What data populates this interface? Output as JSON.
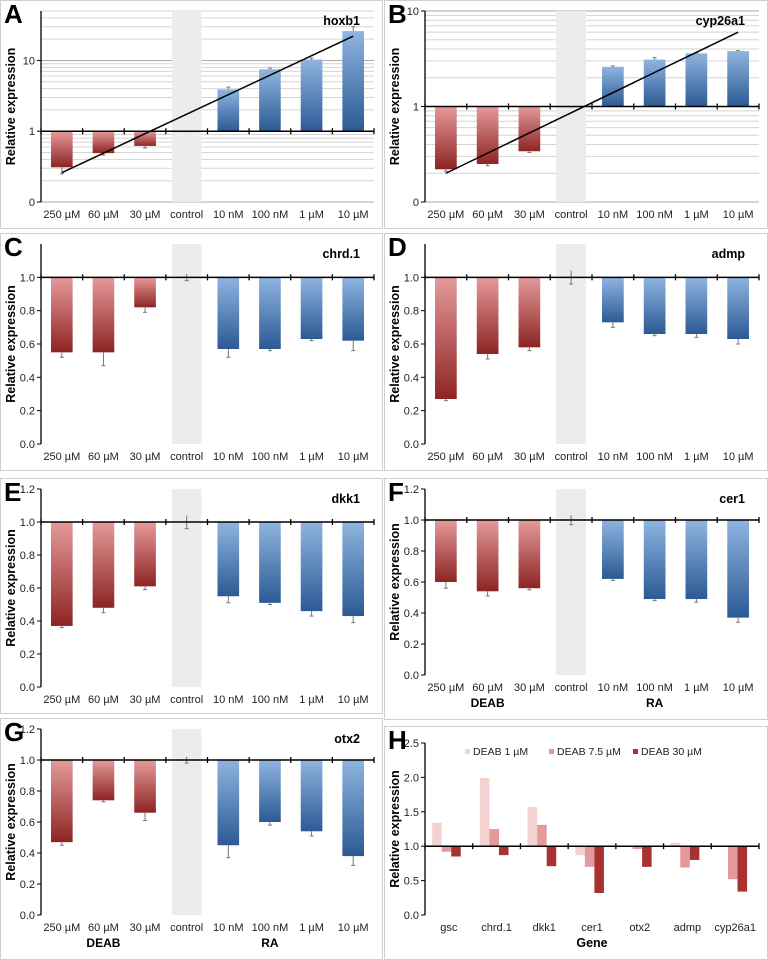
{
  "colors": {
    "deab_light": "#e59a9a",
    "deab_dark": "#8e2424",
    "ra_light": "#8fb4e0",
    "ra_dark": "#2c5a94",
    "control_band": "#ececec",
    "h_series": [
      "#f4d2d2",
      "#e49a9a",
      "#a83232"
    ]
  },
  "categories": [
    "250 µM",
    "60 µM",
    "30 µM",
    "control",
    "10 nM",
    "100 nM",
    "1 µM",
    "10 µM"
  ],
  "chart_data": [
    {
      "panel": "A",
      "type": "bar",
      "title": "hoxb1",
      "ylabel": "Relative expression",
      "yscale": "log",
      "ylim": [
        0.1,
        50
      ],
      "yticks": [
        0.1,
        1,
        10
      ],
      "ytick_labels": [
        "0",
        "1",
        "10"
      ],
      "baseline": 1,
      "values": [
        0.31,
        0.49,
        0.62,
        1.0,
        3.9,
        7.5,
        10.3,
        26
      ],
      "errors": [
        0.06,
        0.03,
        0.04,
        0.01,
        0.3,
        0.3,
        0.5,
        4
      ],
      "trendline": [
        0.26,
        22
      ],
      "grid": true
    },
    {
      "panel": "B",
      "type": "bar",
      "title": "cyp26a1",
      "ylabel": "Relative expression",
      "yscale": "log",
      "ylim": [
        0.1,
        10
      ],
      "yticks": [
        0.1,
        1,
        10
      ],
      "ytick_labels": [
        "0",
        "1",
        "10"
      ],
      "baseline": 1,
      "values": [
        0.22,
        0.25,
        0.34,
        1.0,
        2.6,
        3.1,
        3.6,
        3.8
      ],
      "errors": [
        0.01,
        0.01,
        0.01,
        0.01,
        0.06,
        0.15,
        0.05,
        0.05
      ],
      "trendline": [
        0.2,
        6
      ],
      "grid": true
    },
    {
      "panel": "C",
      "type": "bar",
      "title": "chrd.1",
      "ylabel": "Relative expression",
      "yscale": "linear",
      "ylim": [
        0,
        1.2
      ],
      "yticks": [
        0,
        0.2,
        0.4,
        0.6,
        0.8,
        1.0
      ],
      "ytick_labels": [
        "0.0",
        "0.2",
        "0.4",
        "0.6",
        "0.8",
        "1.0"
      ],
      "baseline": 1,
      "values": [
        0.55,
        0.55,
        0.82,
        1.0,
        0.57,
        0.57,
        0.63,
        0.62
      ],
      "errors": [
        0.03,
        0.08,
        0.03,
        0.02,
        0.05,
        0.01,
        0.01,
        0.06
      ],
      "grid": false
    },
    {
      "panel": "D",
      "type": "bar",
      "title": "admp",
      "ylabel": "Relative expression",
      "yscale": "linear",
      "ylim": [
        0,
        1.2
      ],
      "yticks": [
        0,
        0.2,
        0.4,
        0.6,
        0.8,
        1.0
      ],
      "ytick_labels": [
        "0.0",
        "0.2",
        "0.4",
        "0.6",
        "0.8",
        "1.0"
      ],
      "baseline": 1,
      "values": [
        0.27,
        0.54,
        0.58,
        1.0,
        0.73,
        0.66,
        0.66,
        0.63
      ],
      "errors": [
        0.01,
        0.03,
        0.02,
        0.04,
        0.03,
        0.01,
        0.02,
        0.03
      ],
      "grid": false
    },
    {
      "panel": "E",
      "type": "bar",
      "title": "dkk1",
      "ylabel": "Relative expression",
      "yscale": "linear",
      "ylim": [
        0,
        1.2
      ],
      "yticks": [
        0,
        0.2,
        0.4,
        0.6,
        0.8,
        1.0,
        1.2
      ],
      "ytick_labels": [
        "0.0",
        "0.2",
        "0.4",
        "0.6",
        "0.8",
        "1.0",
        "1.2"
      ],
      "baseline": 1,
      "values": [
        0.37,
        0.48,
        0.61,
        1.0,
        0.55,
        0.51,
        0.46,
        0.43
      ],
      "errors": [
        0.01,
        0.03,
        0.02,
        0.04,
        0.04,
        0.01,
        0.03,
        0.04
      ],
      "grid": false
    },
    {
      "panel": "F",
      "type": "bar",
      "title": "cer1",
      "ylabel": "Relative expression",
      "yscale": "linear",
      "ylim": [
        0,
        1.2
      ],
      "yticks": [
        0,
        0.2,
        0.4,
        0.6,
        0.8,
        1.0,
        1.2
      ],
      "ytick_labels": [
        "0.0",
        "0.2",
        "0.4",
        "0.6",
        "0.8",
        "1.0",
        "1.2"
      ],
      "baseline": 1,
      "values": [
        0.6,
        0.54,
        0.56,
        1.0,
        0.62,
        0.49,
        0.49,
        0.37
      ],
      "errors": [
        0.04,
        0.03,
        0.01,
        0.03,
        0.01,
        0.01,
        0.02,
        0.03
      ],
      "groups": [
        "DEAB",
        "RA"
      ],
      "grid": false
    },
    {
      "panel": "G",
      "type": "bar",
      "title": "otx2",
      "ylabel": "Relative expression",
      "yscale": "linear",
      "ylim": [
        0,
        1.2
      ],
      "yticks": [
        0,
        0.2,
        0.4,
        0.6,
        0.8,
        1.0,
        1.2
      ],
      "ytick_labels": [
        "0.0",
        "0.2",
        "0.4",
        "0.6",
        "0.8",
        "1.0",
        "1.2"
      ],
      "baseline": 1,
      "values": [
        0.47,
        0.74,
        0.66,
        1.0,
        0.45,
        0.6,
        0.54,
        0.38
      ],
      "errors": [
        0.02,
        0.01,
        0.05,
        0.02,
        0.08,
        0.02,
        0.03,
        0.06
      ],
      "groups": [
        "DEAB",
        "RA"
      ],
      "grid": false
    },
    {
      "panel": "H",
      "type": "bar",
      "xlabel": "Gene",
      "ylabel": "Relative expression",
      "yscale": "linear",
      "ylim": [
        0,
        2.5
      ],
      "yticks": [
        0,
        0.5,
        1.0,
        1.5,
        2.0,
        2.5
      ],
      "ytick_labels": [
        "0.0",
        "0.5",
        "1.0",
        "1.5",
        "2.0",
        "2.5"
      ],
      "baseline": 1,
      "categories": [
        "gsc",
        "chrd.1",
        "dkk1",
        "cer1",
        "otx2",
        "admp",
        "cyp26a1"
      ],
      "legend_position": "top",
      "series": [
        {
          "name": "DEAB 1 µM",
          "values": [
            1.34,
            1.99,
            1.57,
            0.87,
            0.99,
            1.05,
            1.0
          ]
        },
        {
          "name": "DEAB 7.5 µM",
          "values": [
            0.92,
            1.25,
            1.31,
            0.7,
            0.96,
            0.69,
            0.52
          ]
        },
        {
          "name": "DEAB 30 µM",
          "values": [
            0.85,
            0.87,
            0.71,
            0.32,
            0.7,
            0.8,
            0.34
          ]
        }
      ],
      "grid": false
    }
  ]
}
